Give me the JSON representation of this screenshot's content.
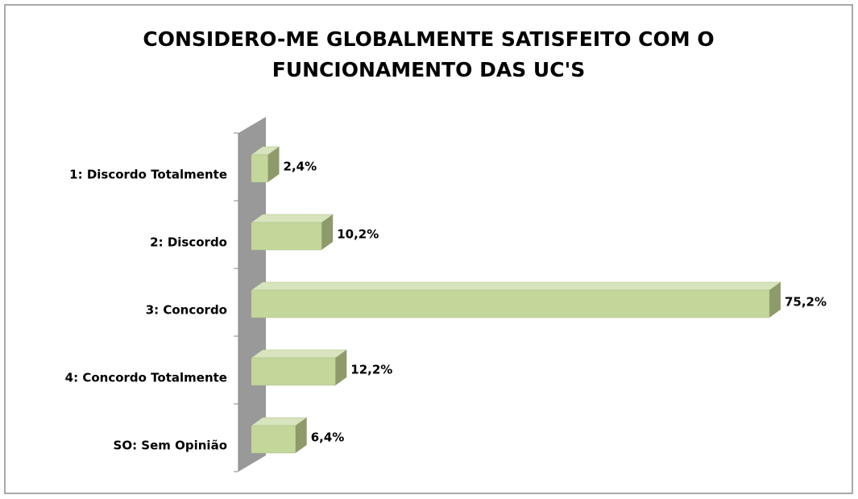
{
  "chart_data": {
    "type": "bar",
    "orientation": "horizontal",
    "title": [
      "CONSIDERO-ME GLOBALMENTE SATISFEITO COM O",
      "FUNCIONAMENTO DAS UC'S"
    ],
    "categories": [
      "1: Discordo Totalmente",
      "2: Discordo",
      "3: Concordo",
      "4: Concordo Totalmente",
      "SO: Sem Opinião"
    ],
    "values": [
      2.4,
      10.2,
      75.2,
      12.2,
      6.4
    ],
    "value_labels": [
      "2,4%",
      "10,2%",
      "75,2%",
      "12,2%",
      "6,4%"
    ],
    "color": "#c4d79b"
  }
}
